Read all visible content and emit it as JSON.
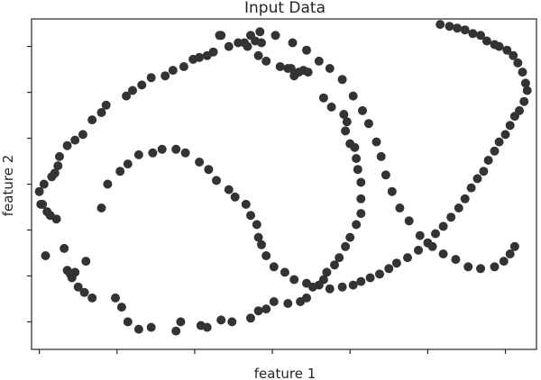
{
  "chart_data": {
    "type": "scatter",
    "title": "Input Data",
    "xlabel": "feature 1",
    "ylabel": "feature 2",
    "xlim": [
      -1.05,
      2.2
    ],
    "ylim": [
      -0.65,
      1.15
    ],
    "xticks": [
      -1,
      -0.5,
      0,
      0.5,
      1,
      1.5,
      2
    ],
    "yticks": [
      -0.5,
      -0.25,
      0,
      0.25,
      0.5,
      0.75,
      1
    ],
    "tick_labels_visible": false,
    "grid": false,
    "color": "#333333",
    "series": [
      {
        "values": [
          [
            0.16,
            1.06
          ],
          [
            0.17,
            1.06
          ],
          [
            0.32,
            1.02
          ],
          [
            0.39,
            1.03
          ],
          [
            0.43,
            1.02
          ],
          [
            0.34,
            1.0
          ],
          [
            0.41,
            0.95
          ],
          [
            0.46,
            0.92
          ],
          [
            0.55,
            0.89
          ],
          [
            0.6,
            0.88
          ],
          [
            0.62,
            0.88
          ],
          [
            0.7,
            0.87
          ],
          [
            0.64,
            0.84
          ],
          [
            0.67,
            0.86
          ],
          [
            0.73,
            0.86
          ],
          [
            0.83,
            0.72
          ],
          [
            0.88,
            0.67
          ],
          [
            0.96,
            0.63
          ],
          [
            0.98,
            0.59
          ],
          [
            0.97,
            0.54
          ],
          [
            1.0,
            0.47
          ],
          [
            1.03,
            0.45
          ],
          [
            1.04,
            0.39
          ],
          [
            1.05,
            0.33
          ],
          [
            1.07,
            0.26
          ],
          [
            1.07,
            0.17
          ],
          [
            1.07,
            0.09
          ],
          [
            1.04,
            0.03
          ],
          [
            1.0,
            -0.04
          ],
          [
            0.97,
            -0.09
          ],
          [
            0.93,
            -0.15
          ],
          [
            0.9,
            -0.19
          ],
          [
            0.85,
            -0.23
          ],
          [
            0.83,
            -0.27
          ],
          [
            0.76,
            -0.31
          ],
          [
            0.72,
            -0.37
          ],
          [
            0.68,
            -0.39
          ],
          [
            0.6,
            -0.4
          ],
          [
            0.51,
            -0.39
          ],
          [
            0.46,
            -0.43
          ],
          [
            0.41,
            -0.44
          ],
          [
            0.36,
            -0.48
          ],
          [
            0.24,
            -0.5
          ],
          [
            0.17,
            -0.49
          ],
          [
            0.08,
            -0.53
          ],
          [
            0.04,
            -0.52
          ],
          [
            -0.09,
            -0.5
          ],
          [
            -0.12,
            -0.55
          ],
          [
            -0.28,
            -0.53
          ],
          [
            -0.36,
            -0.54
          ],
          [
            -0.43,
            -0.5
          ],
          [
            -0.47,
            -0.42
          ],
          [
            -0.51,
            -0.37
          ],
          [
            -0.66,
            -0.37
          ],
          [
            -0.71,
            -0.34
          ],
          [
            -0.75,
            -0.31
          ],
          [
            -0.8,
            -0.24
          ],
          [
            -0.82,
            -0.22
          ],
          [
            -0.77,
            -0.23
          ],
          [
            -0.79,
            -0.26
          ],
          [
            -0.7,
            -0.17
          ],
          [
            -0.84,
            -0.1
          ],
          [
            -0.96,
            -0.14
          ],
          [
            -0.89,
            0.06
          ],
          [
            -0.93,
            0.08
          ],
          [
            -0.95,
            0.1
          ],
          [
            -0.98,
            0.14
          ],
          [
            -0.99,
            0.14
          ],
          [
            -1.0,
            0.21
          ],
          [
            -0.97,
            0.25
          ],
          [
            -0.92,
            0.29
          ],
          [
            -0.9,
            0.31
          ],
          [
            -0.88,
            0.35
          ],
          [
            -0.87,
            0.4
          ],
          [
            -0.82,
            0.46
          ],
          [
            -0.77,
            0.49
          ],
          [
            -0.72,
            0.52
          ],
          [
            -0.66,
            0.6
          ],
          [
            -0.6,
            0.64
          ],
          [
            -0.57,
            0.68
          ],
          [
            -0.44,
            0.73
          ],
          [
            -0.4,
            0.76
          ],
          [
            -0.34,
            0.79
          ],
          [
            -0.28,
            0.83
          ],
          [
            -0.19,
            0.84
          ],
          [
            -0.14,
            0.87
          ],
          [
            -0.07,
            0.89
          ],
          [
            -0.01,
            0.93
          ],
          [
            0.03,
            0.94
          ],
          [
            0.08,
            0.95
          ],
          [
            0.12,
            0.97
          ],
          [
            0.22,
            1.0
          ],
          [
            0.28,
            1.02
          ],
          [
            0.36,
            1.06
          ],
          [
            0.42,
            1.08
          ],
          [
            0.52,
            1.06
          ],
          [
            0.63,
            1.02
          ],
          [
            0.72,
            0.98
          ],
          [
            0.8,
            0.92
          ],
          [
            0.87,
            0.88
          ],
          [
            0.95,
            0.82
          ],
          [
            1.02,
            0.73
          ],
          [
            1.08,
            0.65
          ],
          [
            1.12,
            0.58
          ],
          [
            1.17,
            0.48
          ],
          [
            1.2,
            0.4
          ],
          [
            1.23,
            0.3
          ],
          [
            1.27,
            0.21
          ],
          [
            1.32,
            0.12
          ],
          [
            1.38,
            0.05
          ],
          [
            1.45,
            -0.03
          ],
          [
            1.53,
            -0.09
          ],
          [
            1.6,
            -0.13
          ],
          [
            1.68,
            -0.16
          ],
          [
            1.76,
            -0.2
          ],
          [
            1.84,
            -0.21
          ],
          [
            1.93,
            -0.2
          ],
          [
            1.99,
            -0.17
          ],
          [
            2.03,
            -0.13
          ],
          [
            2.06,
            -0.09
          ]
        ]
      },
      {
        "values": [
          [
            -0.6,
            0.12
          ],
          [
            -0.56,
            0.25
          ],
          [
            -0.48,
            0.32
          ],
          [
            -0.43,
            0.36
          ],
          [
            -0.36,
            0.41
          ],
          [
            -0.27,
            0.42
          ],
          [
            -0.21,
            0.44
          ],
          [
            -0.12,
            0.44
          ],
          [
            -0.06,
            0.42
          ],
          [
            0.03,
            0.37
          ],
          [
            0.09,
            0.33
          ],
          [
            0.14,
            0.27
          ],
          [
            0.22,
            0.22
          ],
          [
            0.26,
            0.18
          ],
          [
            0.33,
            0.14
          ],
          [
            0.36,
            0.08
          ],
          [
            0.4,
            0.03
          ],
          [
            0.41,
            -0.04
          ],
          [
            0.43,
            -0.08
          ],
          [
            0.46,
            -0.14
          ],
          [
            0.51,
            -0.2
          ],
          [
            0.58,
            -0.23
          ],
          [
            0.64,
            -0.27
          ],
          [
            0.72,
            -0.29
          ],
          [
            0.8,
            -0.3
          ],
          [
            0.87,
            -0.32
          ],
          [
            0.95,
            -0.31
          ],
          [
            1.02,
            -0.3
          ],
          [
            1.07,
            -0.28
          ],
          [
            1.13,
            -0.26
          ],
          [
            1.19,
            -0.24
          ],
          [
            1.25,
            -0.21
          ],
          [
            1.3,
            -0.18
          ],
          [
            1.37,
            -0.15
          ],
          [
            1.44,
            -0.11
          ],
          [
            1.5,
            -0.07
          ],
          [
            1.55,
            -0.02
          ],
          [
            1.6,
            0.02
          ],
          [
            1.65,
            0.07
          ],
          [
            1.7,
            0.12
          ],
          [
            1.74,
            0.17
          ],
          [
            1.78,
            0.23
          ],
          [
            1.82,
            0.28
          ],
          [
            1.86,
            0.32
          ],
          [
            1.89,
            0.38
          ],
          [
            1.93,
            0.43
          ],
          [
            1.96,
            0.48
          ],
          [
            2.0,
            0.52
          ],
          [
            2.03,
            0.57
          ],
          [
            2.06,
            0.62
          ],
          [
            2.09,
            0.65
          ],
          [
            2.12,
            0.7
          ],
          [
            2.14,
            0.76
          ],
          [
            2.13,
            0.8
          ],
          [
            2.11,
            0.86
          ],
          [
            2.08,
            0.91
          ],
          [
            2.05,
            0.95
          ],
          [
            2.01,
            0.98
          ],
          [
            1.96,
            1.0
          ],
          [
            1.93,
            1.01
          ],
          [
            1.88,
            1.03
          ],
          [
            1.84,
            1.06
          ],
          [
            1.79,
            1.07
          ],
          [
            1.74,
            1.09
          ],
          [
            1.69,
            1.1
          ],
          [
            1.64,
            1.11
          ],
          [
            1.58,
            1.12
          ]
        ]
      }
    ]
  }
}
